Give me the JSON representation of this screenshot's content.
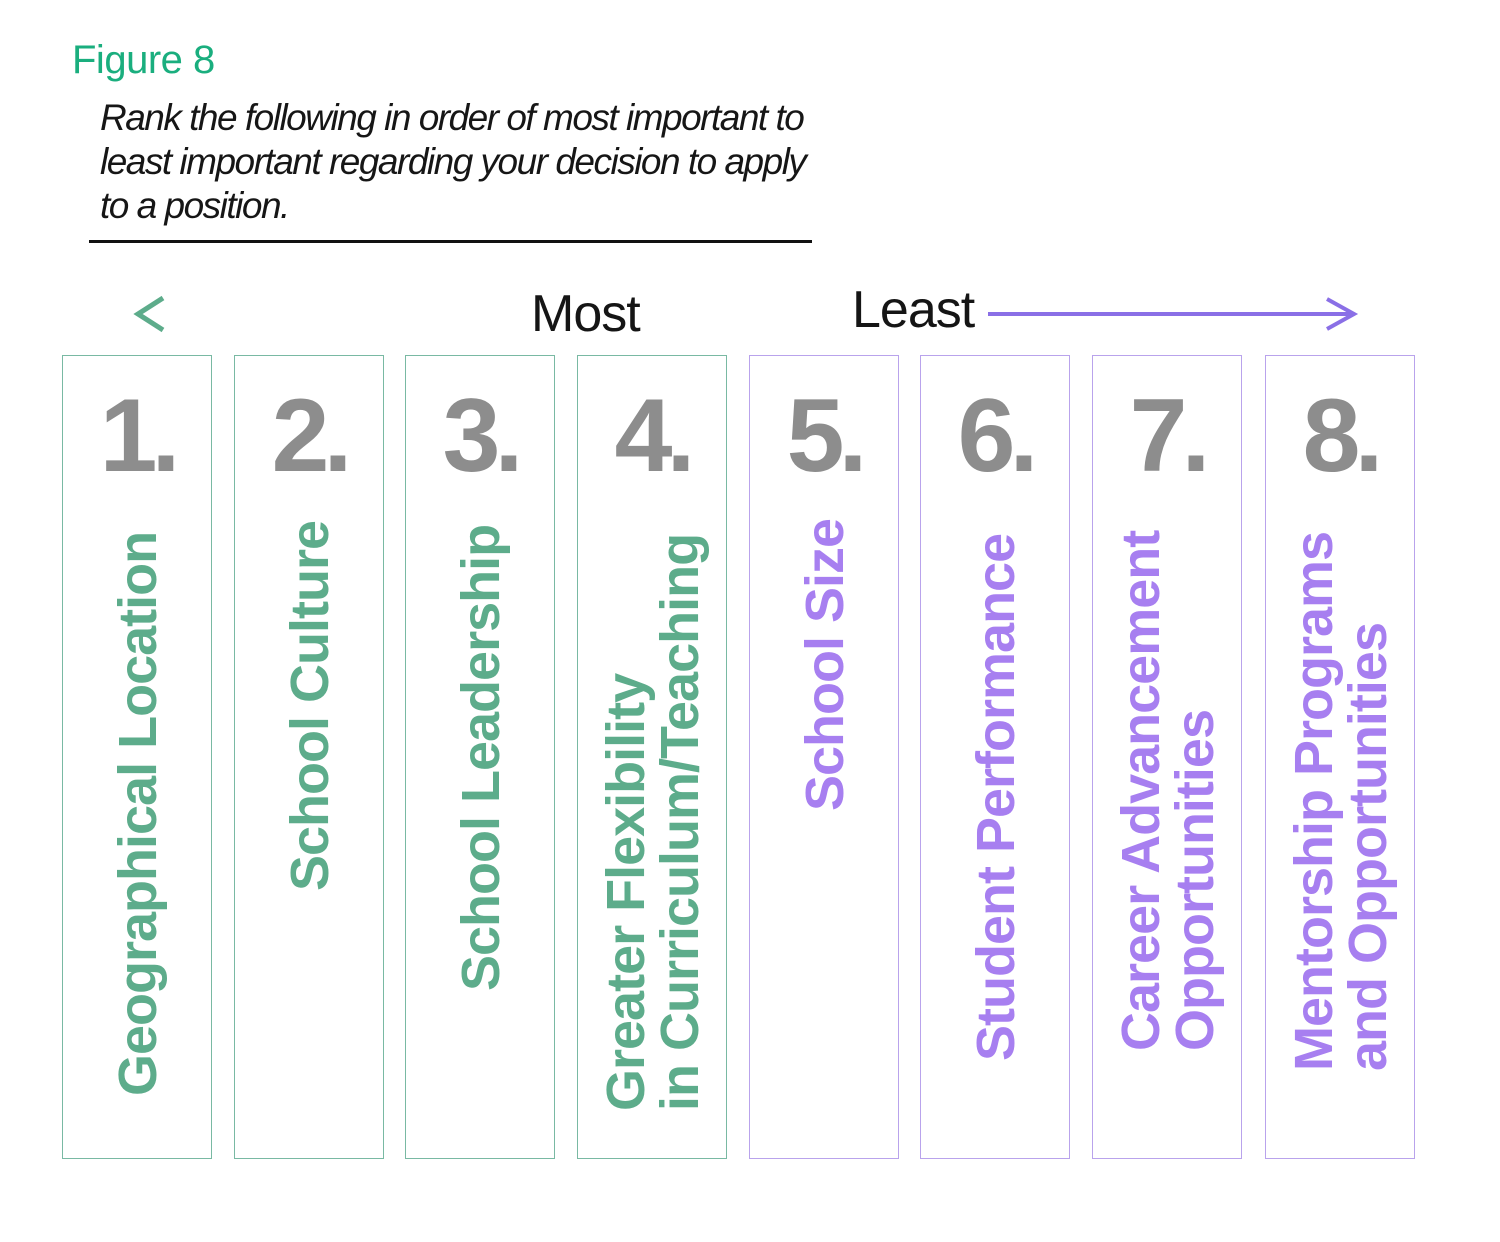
{
  "figure_label": "Figure 8",
  "question": "Rank the following in order of most important to least important regarding your decision to apply to a position.",
  "scale": {
    "most": "Most",
    "least": "Least"
  },
  "colors": {
    "green": "#5dac8b",
    "purple": "#a77ff0",
    "green_border": "#79b9a3",
    "purple_border": "#b9a3ec",
    "number": "#8d8d8d",
    "figure_label": "#1aae7e"
  },
  "items": [
    {
      "number": "1.",
      "lines": [
        "Geographical Location"
      ],
      "group": "green"
    },
    {
      "number": "2.",
      "lines": [
        "School Culture"
      ],
      "group": "green"
    },
    {
      "number": "3.",
      "lines": [
        "School Leadership"
      ],
      "group": "green"
    },
    {
      "number": "4.",
      "lines": [
        "Greater Flexibility",
        "in Curriculum/Teaching"
      ],
      "group": "green"
    },
    {
      "number": "5.",
      "lines": [
        "School Size"
      ],
      "group": "purple"
    },
    {
      "number": "6.",
      "lines": [
        "Student Performance"
      ],
      "group": "purple"
    },
    {
      "number": "7.",
      "lines": [
        "Career Advancement",
        "Opportunities"
      ],
      "group": "purple"
    },
    {
      "number": "8.",
      "lines": [
        "Mentorship Programs",
        "and Opportunities"
      ],
      "group": "purple"
    }
  ]
}
